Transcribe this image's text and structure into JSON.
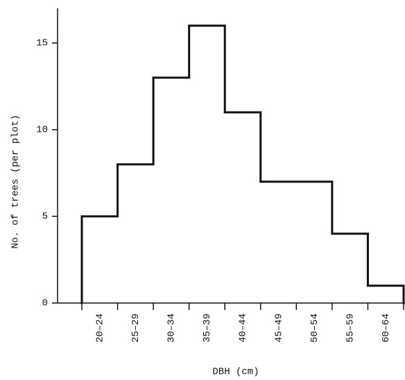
{
  "chart_data": {
    "type": "step",
    "x_label": "DBH (cm)",
    "y_label": "No. of trees (per plot)",
    "categories": [
      "20–24",
      "25–29",
      "30–34",
      "35–39",
      "40–44",
      "45–49",
      "50–54",
      "55–59",
      "60–64"
    ],
    "values": [
      5,
      8,
      13,
      16,
      11,
      7,
      7,
      4,
      1
    ],
    "color": "#111111",
    "ylim": [
      0,
      17
    ],
    "yticks": [
      0,
      5,
      10,
      15
    ],
    "grid": false
  }
}
